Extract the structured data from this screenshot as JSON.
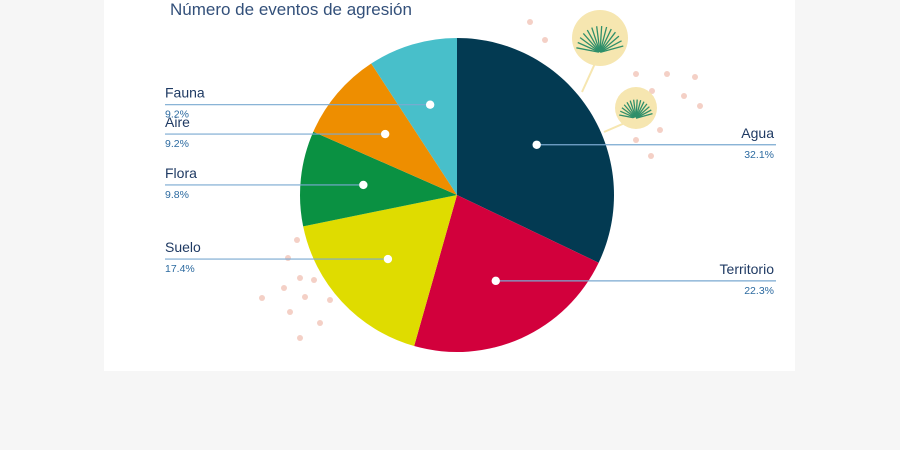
{
  "chart_data": {
    "type": "pie",
    "title": "Número de eventos de agresión",
    "slices": [
      {
        "label": "Agua",
        "value": 32.1,
        "display": "32.1%",
        "color": "#033a52"
      },
      {
        "label": "Territorio",
        "value": 22.3,
        "display": "22.3%",
        "color": "#d2003c"
      },
      {
        "label": "Suelo",
        "value": 17.4,
        "display": "17.4%",
        "color": "#dfdc00"
      },
      {
        "label": "Flora",
        "value": 9.8,
        "display": "9.8%",
        "color": "#0a9142"
      },
      {
        "label": "Aire",
        "value": 9.2,
        "display": "9.2%",
        "color": "#ee8e00"
      },
      {
        "label": "Fauna",
        "value": 9.2,
        "display": "9.2%",
        "color": "#48bfca"
      }
    ],
    "start_angle": "12 o'clock",
    "direction": "clockwise",
    "legend": "none"
  },
  "decoration": {
    "leaf_color": "#2f8f6a",
    "leaf_halo_color": "#f6e6b0",
    "dot_color": "#f4d0c6"
  }
}
